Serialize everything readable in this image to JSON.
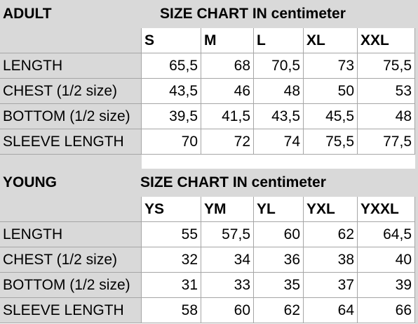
{
  "tables": [
    {
      "title": "ADULT",
      "subtitle": "SIZE CHART IN centimeter",
      "headers": [
        "S",
        "M",
        "L",
        "XL",
        "XXL"
      ],
      "rows": [
        {
          "label": "LENGTH",
          "values": [
            "65,5",
            "68",
            "70,5",
            "73",
            "75,5"
          ]
        },
        {
          "label": "CHEST (1/2 size)",
          "values": [
            "43,5",
            "46",
            "48",
            "50",
            "53"
          ]
        },
        {
          "label": "BOTTOM (1/2 size)",
          "values": [
            "39,5",
            "41,5",
            "43,5",
            "45,5",
            "48"
          ]
        },
        {
          "label": "SLEEVE LENGTH",
          "values": [
            "70",
            "72",
            "74",
            "75,5",
            "77,5"
          ]
        }
      ]
    },
    {
      "title": "YOUNG",
      "subtitle": "SIZE CHART IN centimeter",
      "headers": [
        "YS",
        "YM",
        "YL",
        "YXL",
        "YXXL"
      ],
      "rows": [
        {
          "label": "LENGTH",
          "values": [
            "55",
            "57,5",
            "60",
            "62",
            "64,5"
          ]
        },
        {
          "label": "CHEST (1/2 size)",
          "values": [
            "32",
            "34",
            "36",
            "38",
            "40"
          ]
        },
        {
          "label": "BOTTOM (1/2 size)",
          "values": [
            "31",
            "33",
            "35",
            "37",
            "39"
          ]
        },
        {
          "label": "SLEEVE LENGTH",
          "values": [
            "58",
            "60",
            "62",
            "64",
            "66"
          ]
        }
      ]
    }
  ]
}
